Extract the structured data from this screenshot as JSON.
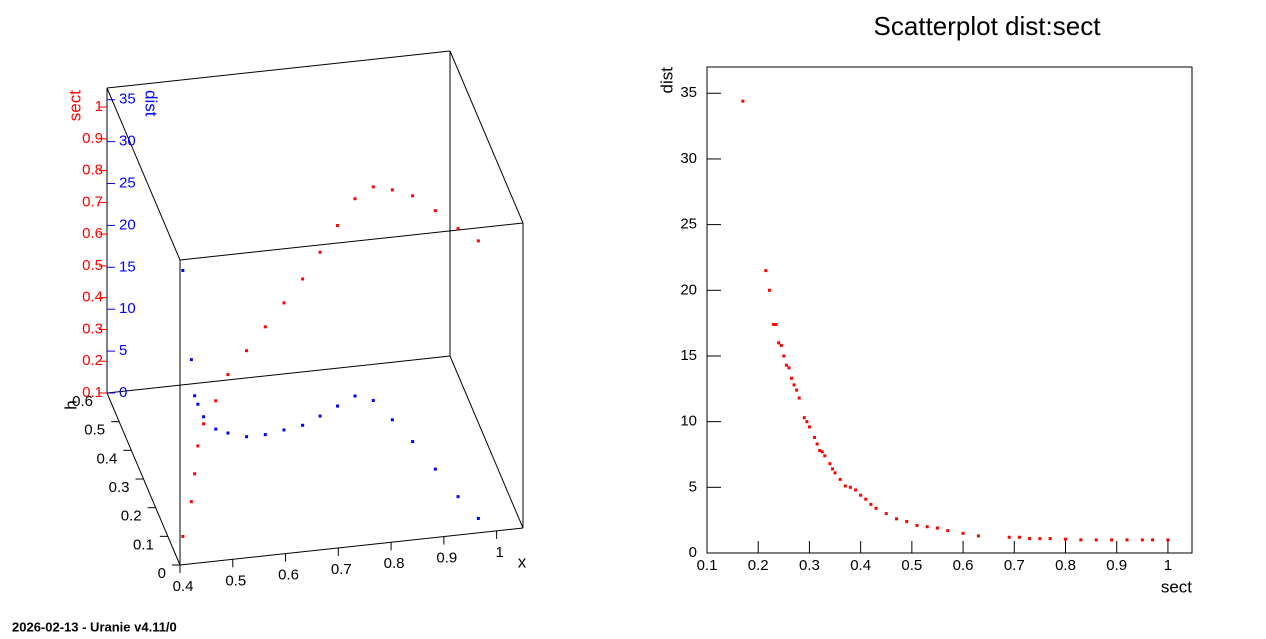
{
  "chart_data": [
    {
      "type": "scatter3d",
      "xlabel": "x",
      "hlabel": "h",
      "x": [
        0.41,
        0.44,
        0.46,
        0.48,
        0.5,
        0.53,
        0.56,
        0.6,
        0.64,
        0.68,
        0.72,
        0.76,
        0.8,
        0.84,
        0.87,
        0.89,
        0.91,
        0.93,
        0.95,
        0.97
      ],
      "h": [
        0.02,
        0.08,
        0.14,
        0.2,
        0.24,
        0.27,
        0.3,
        0.32,
        0.34,
        0.36,
        0.38,
        0.41,
        0.44,
        0.47,
        0.45,
        0.38,
        0.3,
        0.2,
        0.1,
        0.02
      ],
      "xlim": [
        0.4,
        1.05
      ],
      "xticks": [
        0.4,
        0.5,
        0.6,
        0.7,
        0.8,
        0.9,
        1
      ],
      "hlim": [
        0,
        0.6
      ],
      "hticks": [
        0,
        0.1,
        0.2,
        0.3,
        0.4,
        0.5,
        0.6
      ],
      "series": [
        {
          "name": "sect",
          "color": "#ff0000",
          "lim": [
            0.1,
            1.06
          ],
          "ticks": [
            0.1,
            0.2,
            0.3,
            0.4,
            0.5,
            0.6,
            0.7,
            0.8,
            0.9,
            1
          ],
          "values": [
            0.17,
            0.22,
            0.25,
            0.28,
            0.31,
            0.35,
            0.4,
            0.45,
            0.5,
            0.55,
            0.6,
            0.65,
            0.7,
            0.75,
            0.8,
            0.85,
            0.9,
            0.94,
            0.97,
            1.0
          ]
        },
        {
          "name": "dist",
          "color": "#0000ff",
          "lim": [
            0,
            36.4
          ],
          "ticks": [
            0,
            5,
            10,
            15,
            20,
            25,
            30,
            35
          ],
          "values": [
            34.4,
            21.5,
            15,
            11.8,
            8.8,
            6.1,
            4.4,
            3,
            2.3,
            1.9,
            1.5,
            1.3,
            1.2,
            1.1,
            1.05,
            1.0,
            1.0,
            1.0,
            1.0,
            1.0
          ]
        }
      ]
    },
    {
      "type": "scatter",
      "title": "Scatterplot dist:sect",
      "xlabel": "sect",
      "ylabel": "dist",
      "color": "#ff0000",
      "x": [
        0.17,
        0.215,
        0.222,
        0.23,
        0.235,
        0.24,
        0.245,
        0.25,
        0.255,
        0.26,
        0.265,
        0.27,
        0.275,
        0.28,
        0.29,
        0.295,
        0.3,
        0.31,
        0.315,
        0.32,
        0.325,
        0.33,
        0.34,
        0.345,
        0.35,
        0.36,
        0.37,
        0.38,
        0.39,
        0.4,
        0.41,
        0.42,
        0.43,
        0.45,
        0.47,
        0.49,
        0.51,
        0.53,
        0.55,
        0.57,
        0.6,
        0.63,
        0.69,
        0.71,
        0.73,
        0.75,
        0.77,
        0.8,
        0.83,
        0.86,
        0.89,
        0.92,
        0.95,
        0.97,
        1.0
      ],
      "y": [
        34.4,
        21.5,
        20,
        17.4,
        17.4,
        16,
        15.8,
        15,
        14.3,
        14.1,
        13.3,
        12.8,
        12.4,
        11.8,
        10.3,
        10,
        9.6,
        8.8,
        8.3,
        7.8,
        7.7,
        7.4,
        6.8,
        6.4,
        6.1,
        5.6,
        5.1,
        5,
        4.8,
        4.4,
        4.1,
        3.7,
        3.4,
        3,
        2.6,
        2.4,
        2.1,
        2.0,
        1.9,
        1.7,
        1.5,
        1.3,
        1.2,
        1.2,
        1.1,
        1.1,
        1.1,
        1.05,
        1.0,
        1.0,
        1.0,
        1.0,
        1.0,
        1.0,
        1.0
      ],
      "xlim": [
        0.1,
        1.047
      ],
      "xticks": [
        0.1,
        0.2,
        0.3,
        0.4,
        0.5,
        0.6,
        0.7,
        0.8,
        0.9,
        1
      ],
      "ylim": [
        0,
        37
      ],
      "yticks": [
        0,
        5,
        10,
        15,
        20,
        25,
        30,
        35
      ]
    }
  ],
  "footer": "2026-02-13 - Uranie v4.11/0"
}
